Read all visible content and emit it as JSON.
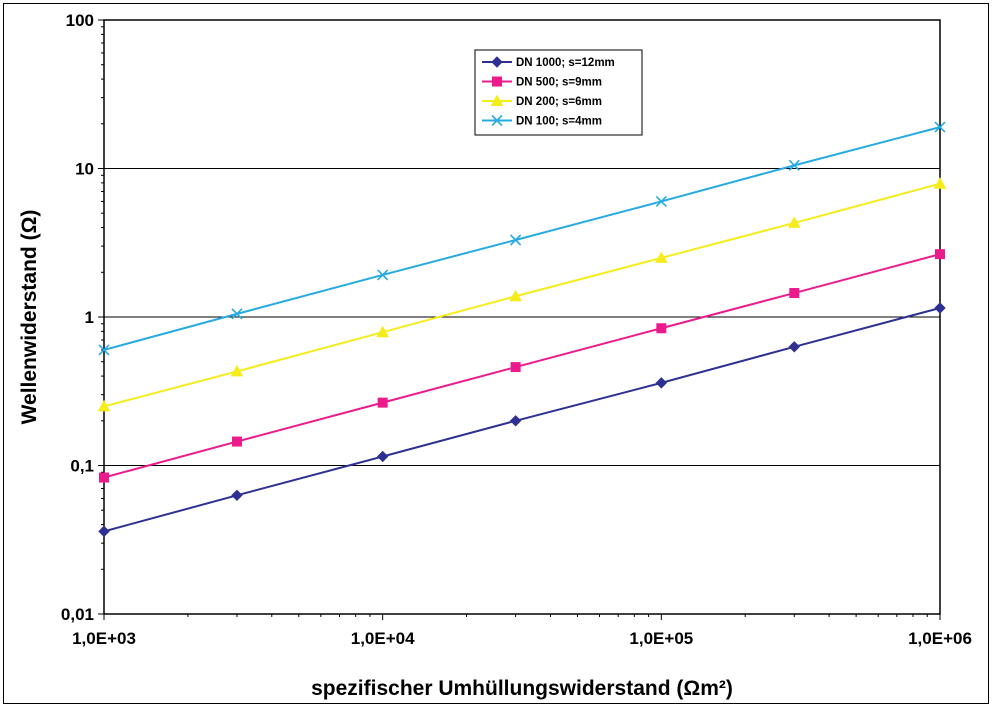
{
  "chart_data": {
    "type": "line",
    "title": "",
    "xlabel": "spezifischer Umhüllungswiderstand (Ωm²)",
    "ylabel": "Wellenwiderstand (Ω)",
    "x_scale": "log",
    "y_scale": "log",
    "xlim": [
      1000,
      1000000
    ],
    "ylim": [
      0.01,
      100
    ],
    "x": [
      1000,
      3000,
      10000,
      30000,
      100000,
      300000,
      1000000
    ],
    "x_tick_values": [
      1000,
      10000,
      100000,
      1000000
    ],
    "x_tick_labels": [
      "1,0E+03",
      "1,0E+04",
      "1,0E+05",
      "1,0E+06"
    ],
    "y_tick_values": [
      0.01,
      0.1,
      1,
      10,
      100
    ],
    "y_tick_labels": [
      "0,01",
      "0,1",
      "1",
      "10",
      "100"
    ],
    "grid": "horizontal major",
    "legend_position": "top-center",
    "series": [
      {
        "name": "DN 1000; s=12mm",
        "color": "#2e3192",
        "marker": "diamond",
        "values": [
          0.036,
          0.063,
          0.115,
          0.2,
          0.36,
          0.63,
          1.15
        ]
      },
      {
        "name": "DN 500; s=9mm",
        "color": "#ec1b8c",
        "marker": "square",
        "values": [
          0.083,
          0.145,
          0.265,
          0.46,
          0.84,
          1.45,
          2.65
        ]
      },
      {
        "name": "DN 200; s=6mm",
        "color": "#f5ec1b",
        "marker": "triangle",
        "values": [
          0.25,
          0.43,
          0.79,
          1.38,
          2.5,
          4.3,
          7.9
        ]
      },
      {
        "name": "DN 100; s=4mm",
        "color": "#27aae1",
        "marker": "x",
        "values": [
          0.6,
          1.05,
          1.92,
          3.3,
          6.0,
          10.5,
          19.0
        ]
      }
    ]
  }
}
